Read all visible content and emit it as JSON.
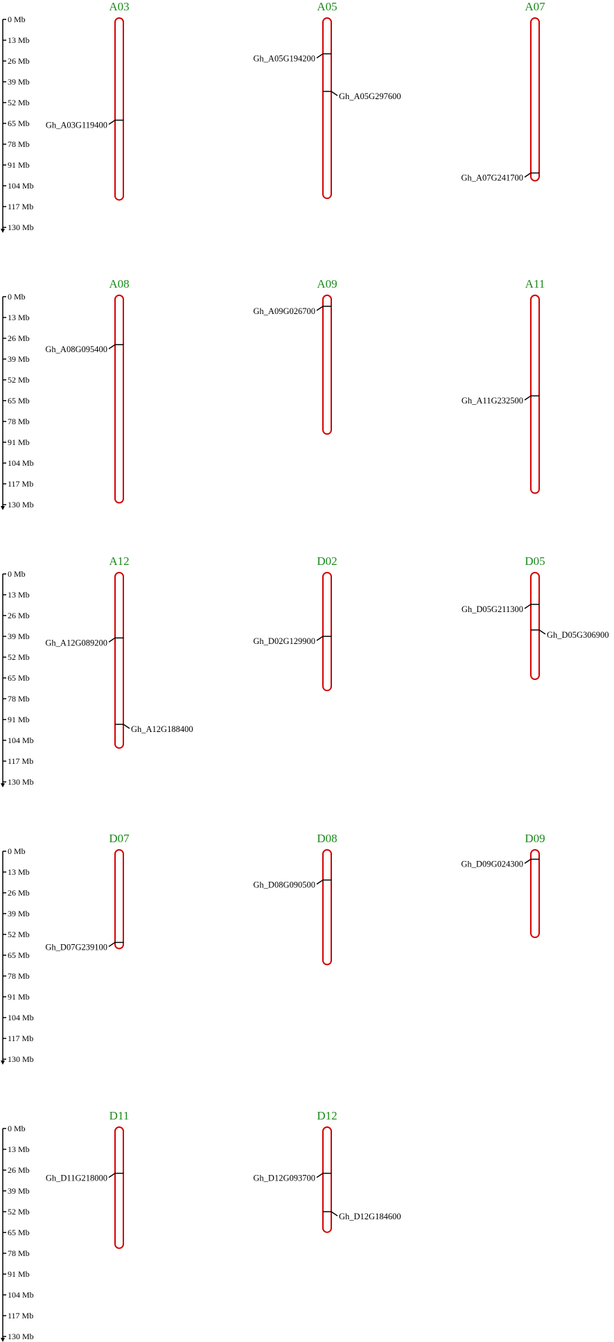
{
  "axis": {
    "unit": "Mb",
    "ticks": [
      0,
      13,
      26,
      39,
      52,
      65,
      78,
      91,
      104,
      117,
      130
    ],
    "tick_labels": [
      "0 Mb",
      "13 Mb",
      "26 Mb",
      "39 Mb",
      "52 Mb",
      "65 Mb",
      "78 Mb",
      "91 Mb",
      "104 Mb",
      "117 Mb",
      "130 Mb"
    ]
  },
  "colors": {
    "chromosome_outline": "#d40000",
    "chromosome_title": "#1a8a1a",
    "gene_marker": "#000000"
  },
  "chart_data": {
    "type": "chromosome-map",
    "axis_range_mb": [
      0,
      130
    ],
    "rows": [
      {
        "chromosomes": [
          {
            "name": "A03",
            "length_mb": 112,
            "genes": [
              {
                "id": "Gh_A03G119400",
                "pos_mb": 63,
                "side": "left"
              }
            ]
          },
          {
            "name": "A05",
            "length_mb": 111,
            "genes": [
              {
                "id": "Gh_A05G194200",
                "pos_mb": 21.5,
                "side": "left"
              },
              {
                "id": "Gh_A05G297600",
                "pos_mb": 45,
                "side": "right"
              }
            ]
          },
          {
            "name": "A07",
            "length_mb": 100,
            "genes": [
              {
                "id": "Gh_A07G241700",
                "pos_mb": 96,
                "side": "left"
              }
            ]
          }
        ]
      },
      {
        "chromosomes": [
          {
            "name": "A08",
            "length_mb": 128,
            "genes": [
              {
                "id": "Gh_A08G095400",
                "pos_mb": 30,
                "side": "left"
              }
            ]
          },
          {
            "name": "A09",
            "length_mb": 85,
            "genes": [
              {
                "id": "Gh_A09G026700",
                "pos_mb": 6,
                "side": "left"
              }
            ]
          },
          {
            "name": "A11",
            "length_mb": 122,
            "genes": [
              {
                "id": "Gh_A11G232500",
                "pos_mb": 62,
                "side": "left"
              }
            ]
          }
        ]
      },
      {
        "chromosomes": [
          {
            "name": "A12",
            "length_mb": 108,
            "genes": [
              {
                "id": "Gh_A12G089200",
                "pos_mb": 40,
                "side": "left"
              },
              {
                "id": "Gh_A12G188400",
                "pos_mb": 94,
                "side": "right"
              }
            ]
          },
          {
            "name": "D02",
            "length_mb": 72,
            "genes": [
              {
                "id": "Gh_D02G129900",
                "pos_mb": 39,
                "side": "left"
              }
            ]
          },
          {
            "name": "D05",
            "length_mb": 65,
            "genes": [
              {
                "id": "Gh_D05G211300",
                "pos_mb": 19,
                "side": "left"
              },
              {
                "id": "Gh_D05G306900",
                "pos_mb": 35,
                "side": "right"
              }
            ]
          }
        ]
      },
      {
        "chromosomes": [
          {
            "name": "D07",
            "length_mb": 60,
            "genes": [
              {
                "id": "Gh_D07G239100",
                "pos_mb": 57,
                "side": "left"
              }
            ]
          },
          {
            "name": "D08",
            "length_mb": 70,
            "genes": [
              {
                "id": "Gh_D08G090500",
                "pos_mb": 18,
                "side": "left"
              }
            ]
          },
          {
            "name": "D09",
            "length_mb": 53,
            "genes": [
              {
                "id": "Gh_D09G024300",
                "pos_mb": 5,
                "side": "left"
              }
            ]
          }
        ]
      },
      {
        "chromosomes": [
          {
            "name": "D11",
            "length_mb": 74,
            "genes": [
              {
                "id": "Gh_D11G218000",
                "pos_mb": 28,
                "side": "left"
              }
            ]
          },
          {
            "name": "D12",
            "length_mb": 64,
            "genes": [
              {
                "id": "Gh_D12G093700",
                "pos_mb": 28,
                "side": "left"
              },
              {
                "id": "Gh_D12G184600",
                "pos_mb": 52,
                "side": "right"
              }
            ]
          }
        ]
      }
    ]
  }
}
